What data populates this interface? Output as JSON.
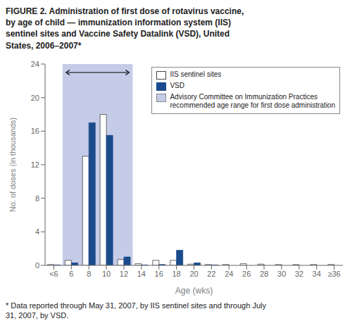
{
  "chart_data": {
    "type": "bar",
    "title": "FIGURE 2. Administration of first dose of rotavirus vaccine,\nby age of child — immunization information system (IIS)\nsentinel sites and Vaccine Safety Datalink (VSD), United\nStates, 2006–2007*",
    "footnote": "* Data reported through May 31, 2007, by IIS sentinel sites and through July\n31, 2007, by VSD.",
    "xlabel": "Age (wks)",
    "ylabel": "No. of doses (in thousands)",
    "categories": [
      "<6",
      "6",
      "8",
      "10",
      "12",
      "14",
      "16",
      "18",
      "20",
      "22",
      "24",
      "26",
      "28",
      "30",
      "32",
      "34",
      "≥36"
    ],
    "series": [
      {
        "name": "IIS sentinel sites",
        "color": "#ffffff",
        "values": [
          0.1,
          0.6,
          13.0,
          18.0,
          0.7,
          0.2,
          0.6,
          0.6,
          0.15,
          0.1,
          0.1,
          0.2,
          0.15,
          0.1,
          0.1,
          0.1,
          0.1
        ]
      },
      {
        "name": "VSD",
        "color": "#1a4b8c",
        "values": [
          0.05,
          0.3,
          17.0,
          15.5,
          1.0,
          0.05,
          0.1,
          1.8,
          0.3,
          0.05,
          0.0,
          0.0,
          0.0,
          0.0,
          0.0,
          0.0,
          0.0
        ]
      }
    ],
    "ylim": [
      0,
      24
    ],
    "yticks": [
      0,
      4,
      8,
      12,
      16,
      20,
      24
    ],
    "grid": false,
    "legend": "upper right",
    "annotations": [
      {
        "type": "shaded_range",
        "label": "Advisory Committee on Immunization Practices\nrecommended age range for first dose administration",
        "color": "#c5cce8",
        "from": "6",
        "to": "12"
      },
      {
        "type": "double_arrow",
        "from": "6",
        "to": "12"
      }
    ]
  }
}
